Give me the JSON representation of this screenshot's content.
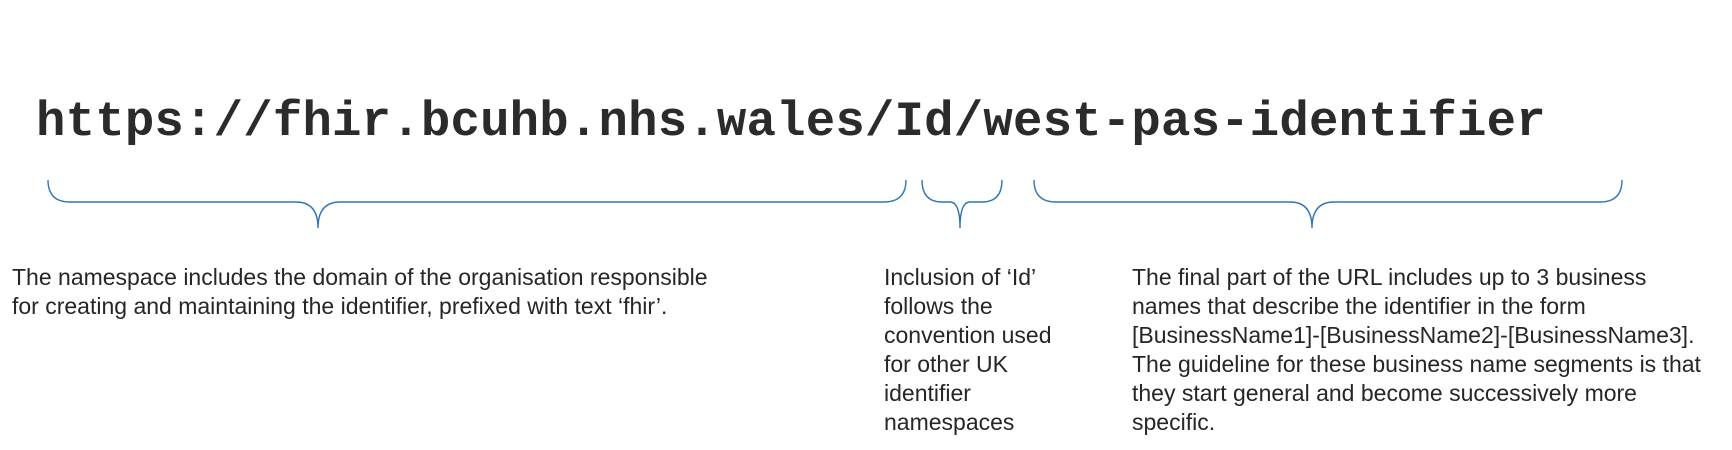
{
  "url": {
    "full": "https://fhir.bcuhb.nhs.wales/Id/west-pas-identifier"
  },
  "annotations": {
    "namespace_lines": [
      "The namespace includes the domain of the organisation responsible",
      "for creating and maintaining the identifier, prefixed with text ‘fhir’."
    ],
    "id_lines": [
      "Inclusion of ‘Id’",
      "follows the",
      "convention used",
      "for other UK",
      "identifier",
      "namespaces"
    ],
    "business_lines": [
      "The final part of the URL includes up to 3 business",
      "names that describe the identifier in the form",
      "[BusinessName1]-[BusinessName2]-[BusinessName3].",
      "The guideline for these business name segments is that",
      "they start general and become successively more",
      "specific."
    ]
  },
  "colors": {
    "brace": "#2e75b6",
    "text": "#262626",
    "url": "#2b2b2b"
  }
}
